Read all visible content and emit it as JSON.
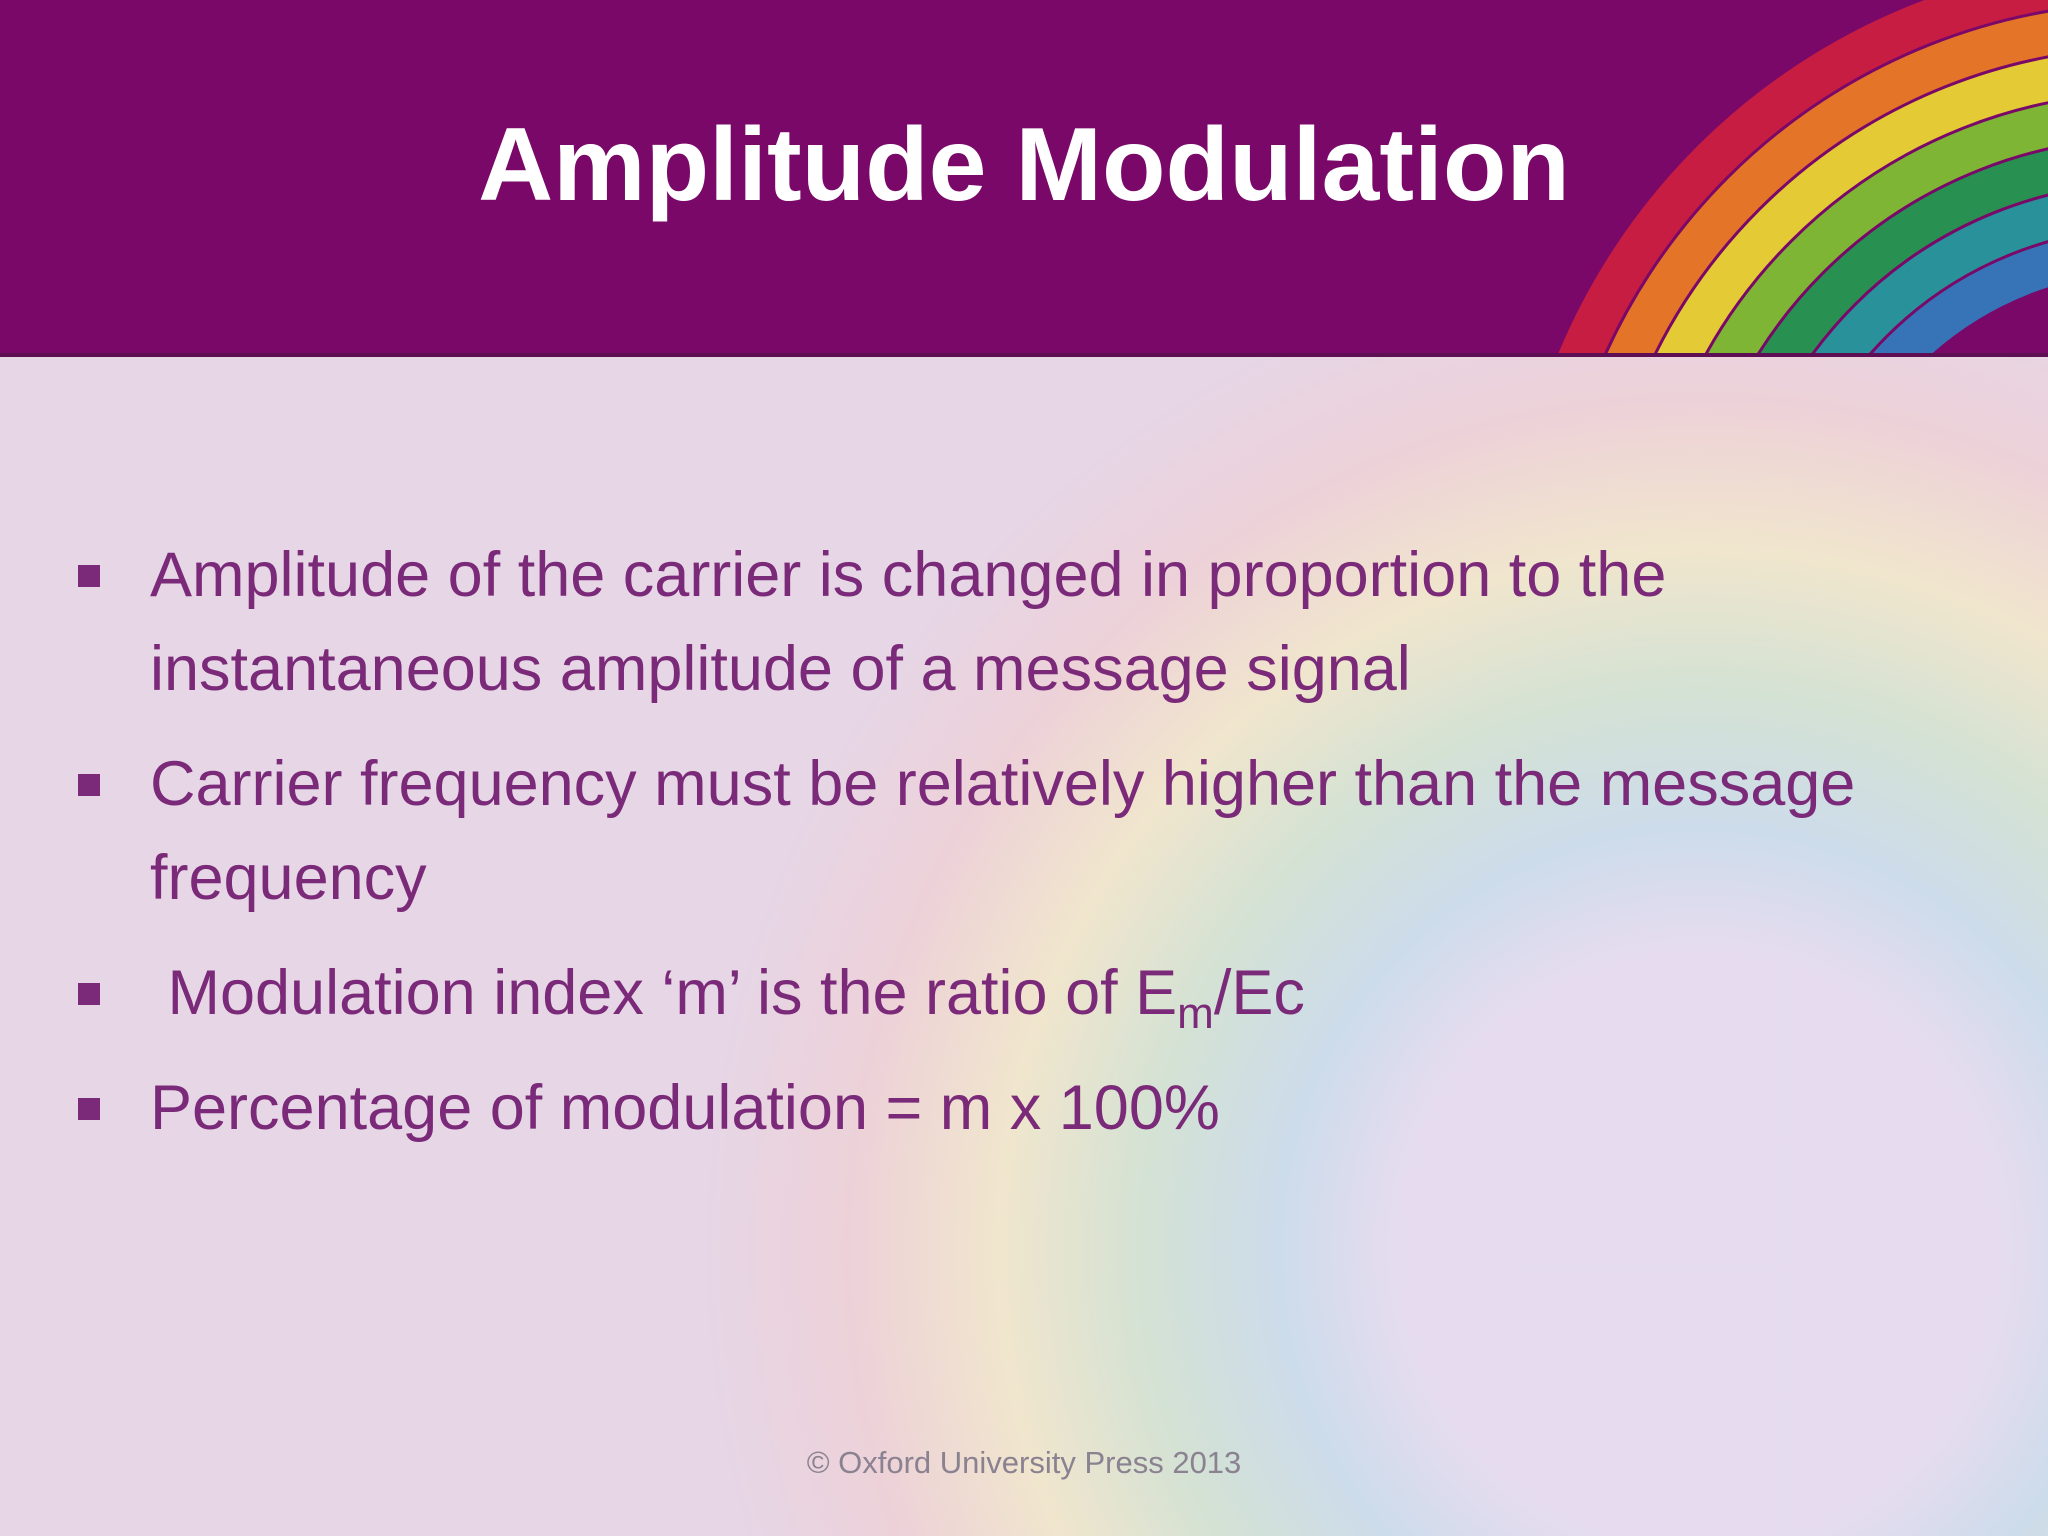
{
  "header": {
    "title": "Amplitude Modulation"
  },
  "bullets": [
    {
      "text": "Amplitude of the carrier is changed in proportion to the instantaneous amplitude of a message signal"
    },
    {
      "text": "Carrier frequency must be relatively higher than the message frequency"
    },
    {
      "text": " Modulation index ‘m’ is the ratio of E",
      "subscript": "m",
      "text_after": "/Ec"
    },
    {
      "text": "Percentage of modulation = m x 100%"
    }
  ],
  "footer": {
    "text": "© Oxford University Press 2013"
  }
}
